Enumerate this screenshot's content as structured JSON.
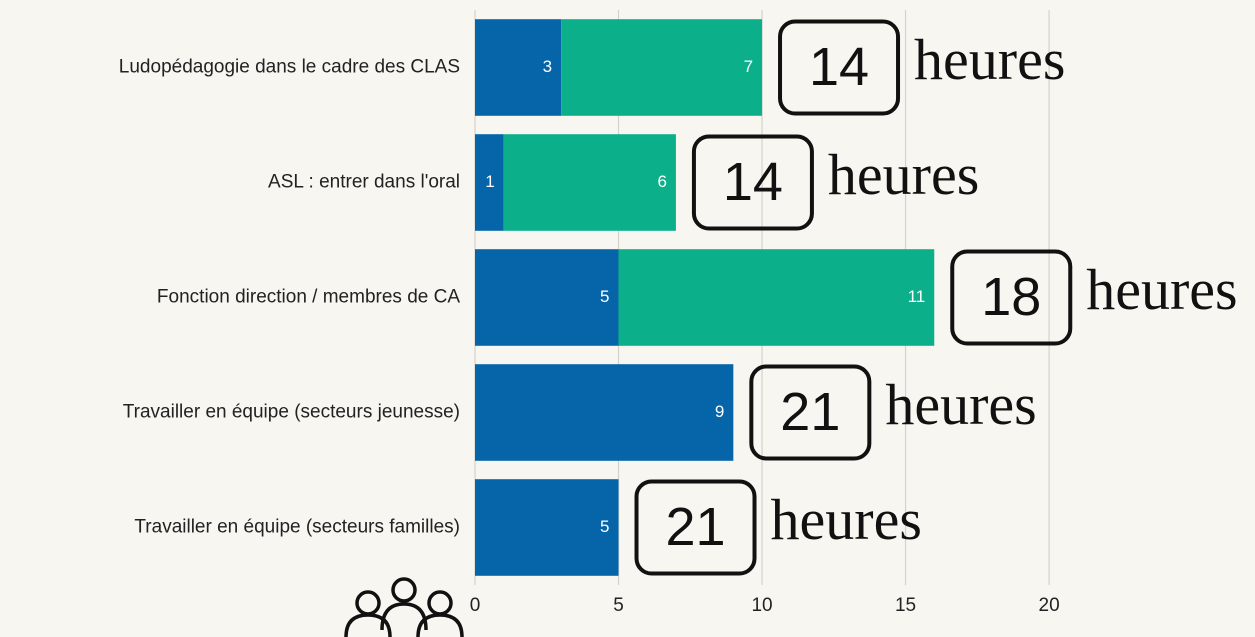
{
  "chart_data": {
    "type": "stacked-barh",
    "categories": [
      "Ludopédagogie dans le cadre des CLAS",
      "ASL : entrer dans l'oral",
      "Fonction direction / membres de CA",
      "Travailler en équipe (secteurs jeunesse)",
      "Travailler en équipe (secteurs familles)"
    ],
    "series": [
      {
        "color": "#0565a8",
        "values": [
          3,
          1,
          5,
          9,
          5
        ]
      },
      {
        "color": "#0bb08b",
        "values": [
          7,
          6,
          11,
          null,
          null
        ]
      }
    ],
    "hours": [
      14,
      14,
      18,
      21,
      21
    ],
    "hours_unit": "heures",
    "xlim": [
      0,
      27
    ],
    "xticks": [
      0,
      5,
      10,
      15,
      20
    ],
    "grid": true
  }
}
